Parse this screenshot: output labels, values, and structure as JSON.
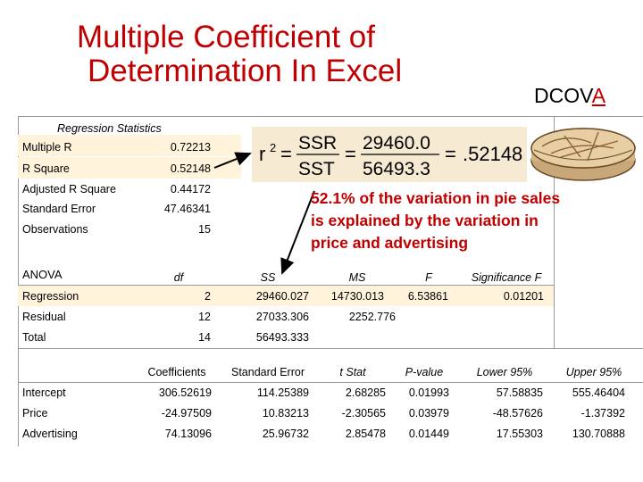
{
  "title": {
    "line1": "Multiple Coefficient of",
    "line2": "Determination In Excel"
  },
  "brand": {
    "prefix": "DCOV",
    "accent": "A"
  },
  "formula": {
    "lhs_r": "r",
    "lhs_exp": "2",
    "equals": "=",
    "num1": "SSR",
    "den1": "SST",
    "num2": "29460.0",
    "den2": "56493.3",
    "result": ".52148"
  },
  "note": {
    "line1": "52.1% of the variation in pie sales",
    "line2": "is explained by the variation in",
    "line3": "price and advertising"
  },
  "regression_stats": {
    "header": "Regression Statistics",
    "rows": [
      {
        "label": "Multiple R",
        "value": "0.72213"
      },
      {
        "label": "R Square",
        "value": "0.52148"
      },
      {
        "label": "Adjusted R Square",
        "value": "0.44172"
      },
      {
        "label": "Standard Error",
        "value": "47.46341"
      },
      {
        "label": "Observations",
        "value": "15"
      }
    ]
  },
  "anova": {
    "label": "ANOVA",
    "headers": [
      "df",
      "SS",
      "MS",
      "F",
      "Significance F"
    ],
    "rows": [
      {
        "label": "Regression",
        "df": "2",
        "ss": "29460.027",
        "ms": "14730.013",
        "f": "6.53861",
        "sig": "0.01201"
      },
      {
        "label": "Residual",
        "df": "12",
        "ss": "27033.306",
        "ms": "2252.776",
        "f": "",
        "sig": ""
      },
      {
        "label": "Total",
        "df": "14",
        "ss": "56493.333",
        "ms": "",
        "f": "",
        "sig": ""
      }
    ]
  },
  "coefficients": {
    "headers": [
      "Coefficients",
      "Standard Error",
      "t Stat",
      "P-value",
      "Lower 95%",
      "Upper 95%"
    ],
    "rows": [
      {
        "label": "Intercept",
        "vals": [
          "306.52619",
          "114.25389",
          "2.68285",
          "0.01993",
          "57.58835",
          "555.46404"
        ]
      },
      {
        "label": "Price",
        "vals": [
          "-24.97509",
          "10.83213",
          "-2.30565",
          "0.03979",
          "-48.57626",
          "-1.37392"
        ]
      },
      {
        "label": "Advertising",
        "vals": [
          "74.13096",
          "25.96732",
          "2.85478",
          "0.01449",
          "17.55303",
          "130.70888"
        ]
      }
    ]
  },
  "colors": {
    "title": "#c00000",
    "shade": "#fff3dc",
    "formula_bg": "#f7ead2"
  },
  "icons": [
    "pie-image",
    "arrow-icon"
  ]
}
